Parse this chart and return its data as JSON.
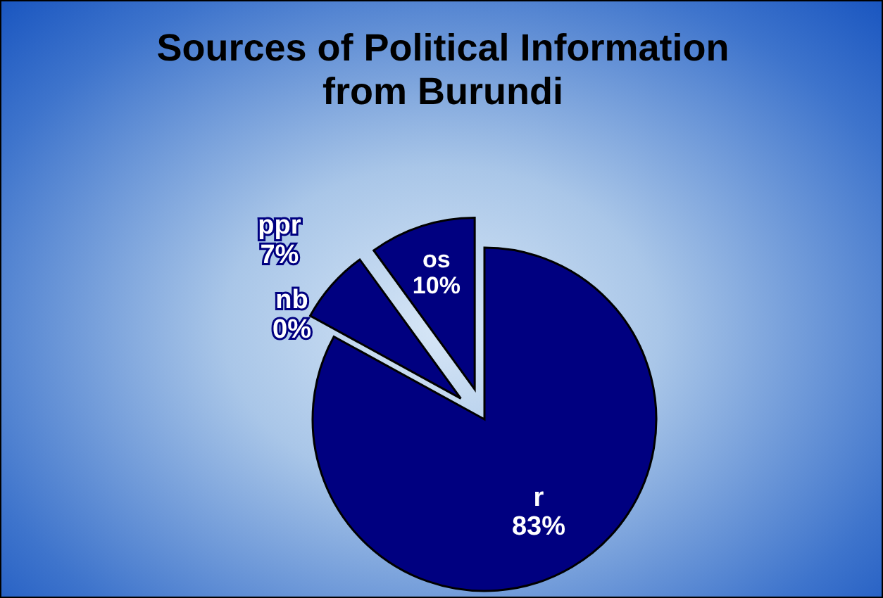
{
  "chart_data": {
    "type": "pie",
    "title": "Sources of Political Information\nfrom Burundi",
    "categories": [
      "r",
      "nb",
      "ppr",
      "os"
    ],
    "values": [
      83,
      0,
      7,
      10
    ],
    "value_labels": [
      "83%",
      "0%",
      "7%",
      "10%"
    ],
    "colors": [
      "#000080",
      "#000080",
      "#000080",
      "#000080"
    ]
  }
}
